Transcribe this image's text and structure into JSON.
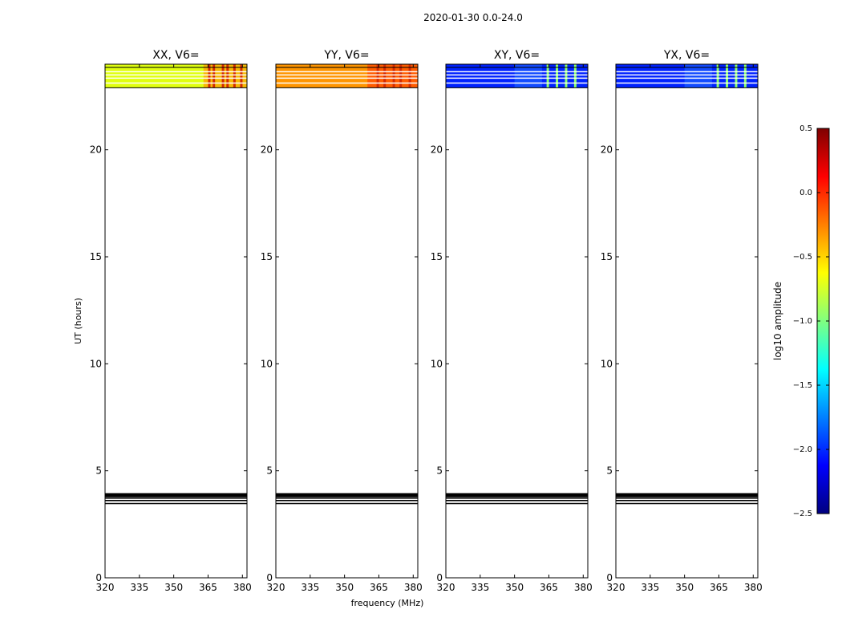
{
  "chart_data": {
    "type": "heatmap",
    "title": "2020-01-30 0.0-24.0",
    "xlabel": "frequency (MHz)",
    "ylabel": "UT (hours)",
    "xlim": [
      320,
      382
    ],
    "ylim": [
      0,
      24
    ],
    "xticks": [
      "320",
      "335",
      "350",
      "365",
      "380"
    ],
    "yticks": [
      "0",
      "5",
      "10",
      "15",
      "20"
    ],
    "panels": [
      {
        "title": "XX, V6=",
        "data_rows": [
          22.9,
          24.0
        ],
        "base_color": "#e0ff10",
        "hot_region": {
          "freq": [
            363,
            382
          ],
          "color": "#ff9a00"
        },
        "hot_stripes": [
          365,
          367,
          371,
          373,
          376,
          379
        ]
      },
      {
        "title": "YY, V6=",
        "data_rows": [
          22.9,
          24.0
        ],
        "base_color": "#ff9500",
        "hot_region": {
          "freq": [
            360,
            382
          ],
          "color": "#ff4400"
        },
        "hot_stripes": [
          364,
          367,
          371,
          374,
          378
        ]
      },
      {
        "title": "XY, V6=",
        "data_rows": [
          22.9,
          24.0
        ],
        "base_color": "#0022ff",
        "hot_region": {
          "freq": [
            350,
            362
          ],
          "color": "#1a5cff"
        },
        "hot_stripes": [
          364,
          368,
          372,
          376
        ]
      },
      {
        "title": "YX, V6=",
        "data_rows": [
          22.9,
          24.0
        ],
        "base_color": "#0022ff",
        "hot_region": {
          "freq": [
            350,
            362
          ],
          "color": "#1a5cff"
        },
        "hot_stripes": [
          364,
          368,
          372,
          376
        ]
      }
    ],
    "black_lines_ut": [
      3.47,
      3.61,
      3.72,
      3.82,
      3.9
    ],
    "white_lines_ut": [
      23.12,
      23.35,
      23.5,
      23.65
    ],
    "colorbar": {
      "label": "log10 amplitude",
      "min": -2.5,
      "max": 0.5,
      "ticks": [
        "0.5",
        "0.0",
        "−0.5",
        "−1.0",
        "−1.5",
        "−2.0",
        "−2.5"
      ],
      "colormap": [
        "#00007f",
        "#0000ff",
        "#0080ff",
        "#00ffff",
        "#80ff80",
        "#ffff00",
        "#ff8000",
        "#ff0000",
        "#7f0000"
      ]
    }
  }
}
